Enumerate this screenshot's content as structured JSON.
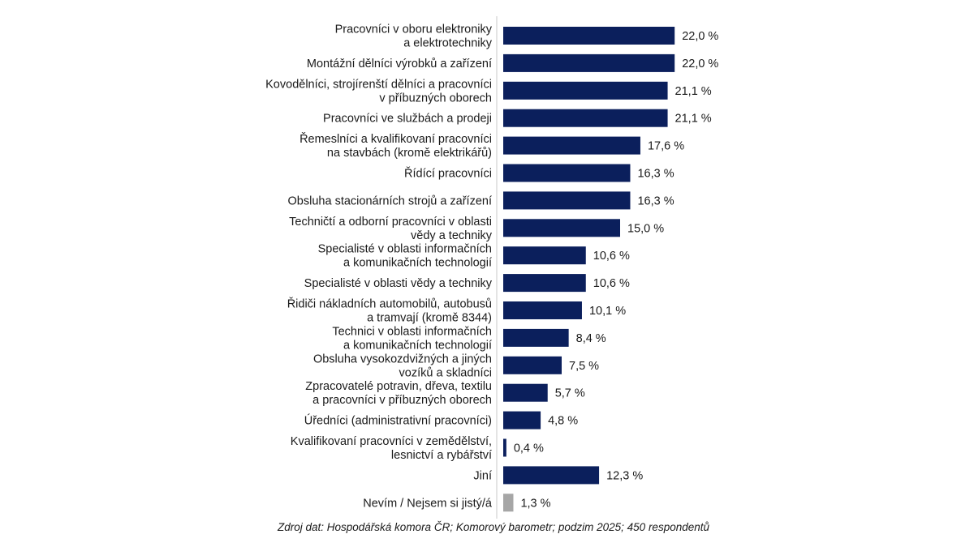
{
  "colors": {
    "bar": "#0b1f5c",
    "bar_muted": "#a6a6a6",
    "axis": "#c8c8c8"
  },
  "chart_data": {
    "type": "bar",
    "orientation": "horizontal",
    "xlim": [
      0,
      25
    ],
    "grid": false,
    "categories": [
      [
        "Pracovníci v oboru elektroniky",
        "a elektrotechniky"
      ],
      [
        "Montážní dělníci výrobků a zařízení"
      ],
      [
        "Kovodělníci, strojírenští dělníci a pracovníci",
        "v příbuzných oborech"
      ],
      [
        "Pracovníci ve službách a prodeji"
      ],
      [
        "Řemeslníci a kvalifikovaní pracovníci",
        "na stavbách (kromě elektrikářů)"
      ],
      [
        "Řídící pracovníci"
      ],
      [
        "Obsluha stacionárních strojů a zařízení"
      ],
      [
        "Techničtí a odborní pracovníci v oblasti",
        "vědy a techniky"
      ],
      [
        "Specialisté v oblasti informačních",
        "a komunikačních technologií"
      ],
      [
        "Specialisté v oblasti vědy a techniky"
      ],
      [
        "Řidiči nákladních automobilů, autobusů",
        "a tramvají (kromě 8344)"
      ],
      [
        "Technici v oblasti informačních",
        "a komunikačních technologií"
      ],
      [
        "Obsluha vysokozdvižných a jiných",
        "vozíků a skladníci"
      ],
      [
        "Zpracovatelé potravin, dřeva, textilu",
        "a pracovníci v příbuzných oborech"
      ],
      [
        "Úředníci (administrativní pracovníci)"
      ],
      [
        "Kvalifikovaní pracovníci v zemědělství,",
        "lesnictví a rybářství"
      ],
      [
        "Jiní"
      ],
      [
        "Nevím / Nejsem si jistý/á"
      ]
    ],
    "values": [
      22.0,
      22.0,
      21.1,
      21.1,
      17.6,
      16.3,
      16.3,
      15.0,
      10.6,
      10.6,
      10.1,
      8.4,
      7.5,
      5.7,
      4.8,
      0.4,
      12.3,
      1.3
    ],
    "value_labels": [
      "22,0 %",
      "22,0 %",
      "21,1 %",
      "21,1 %",
      "17,6 %",
      "16,3 %",
      "16,3 %",
      "15,0 %",
      "10,6 %",
      "10,6 %",
      "10,1 %",
      "8,4 %",
      "7,5 %",
      "5,7 %",
      "4,8 %",
      "0,4 %",
      "12,3 %",
      "1,3 %"
    ],
    "muted_indices": [
      17
    ]
  },
  "source": "Zdroj dat: Hospodářská komora ČR; Komorový barometr; podzim 2025; 450 respondentů"
}
